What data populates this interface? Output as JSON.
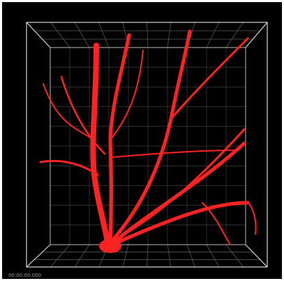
{
  "timestamp": "00:00:00.000"
}
